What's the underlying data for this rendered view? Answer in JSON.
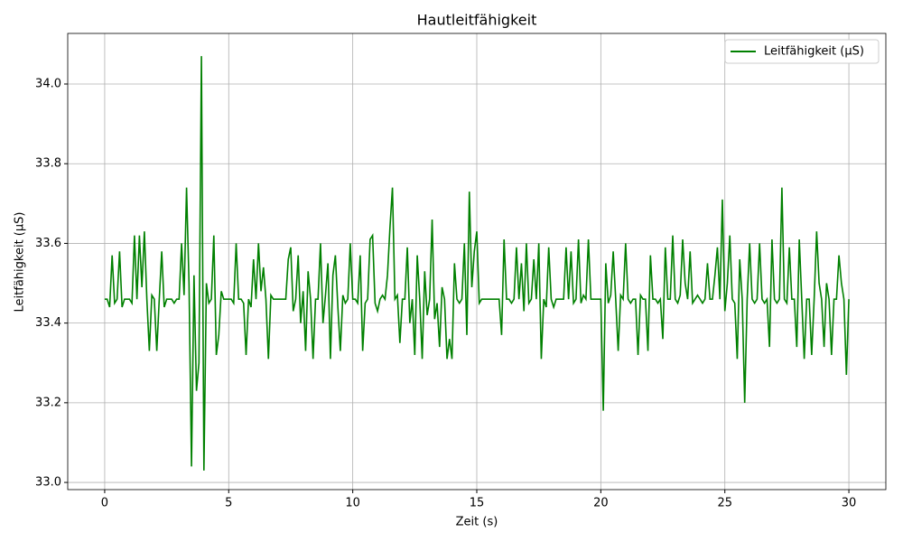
{
  "chart_data": {
    "type": "line",
    "title": "Hautleitfähigkeit",
    "x_label": "Zeit (s)",
    "y_label": "Leitfähigkeit (µS)",
    "xlim": [
      -1.49,
      31.49
    ],
    "ylim": [
      32.982,
      34.127
    ],
    "xticks": [
      0,
      5,
      10,
      15,
      20,
      25,
      30
    ],
    "yticks": [
      {
        "value": 33,
        "label": "33.0"
      },
      33.2,
      33.4,
      33.6,
      33.8,
      {
        "value": 34,
        "label": "34.0"
      }
    ],
    "grid": true,
    "legend": "upper right",
    "x": [
      0,
      0.1,
      0.2,
      0.3,
      0.4,
      0.5,
      0.6,
      0.7,
      0.8,
      0.9,
      1,
      1.1,
      1.2,
      1.3,
      1.4,
      1.5,
      1.6,
      1.7,
      1.8,
      1.9,
      2,
      2.1,
      2.2,
      2.3,
      2.4,
      2.5,
      2.6,
      2.7,
      2.8,
      2.9,
      3,
      3.1,
      3.2,
      3.3,
      3.4,
      3.5,
      3.6,
      3.7,
      3.8,
      3.9,
      4,
      4.1,
      4.2,
      4.3,
      4.4,
      4.5,
      4.6,
      4.7,
      4.8,
      4.9,
      5,
      5.1,
      5.2,
      5.3,
      5.4,
      5.5,
      5.6,
      5.7,
      5.8,
      5.9,
      6,
      6.1,
      6.2,
      6.3,
      6.4,
      6.5,
      6.6,
      6.7,
      6.8,
      6.9,
      7,
      7.1,
      7.2,
      7.3,
      7.4,
      7.5,
      7.6,
      7.7,
      7.8,
      7.9,
      8,
      8.1,
      8.2,
      8.3,
      8.4,
      8.5,
      8.6,
      8.7,
      8.8,
      8.9,
      9,
      9.1,
      9.2,
      9.3,
      9.4,
      9.5,
      9.6,
      9.7,
      9.8,
      9.9,
      10,
      10.1,
      10.2,
      10.3,
      10.4,
      10.5,
      10.6,
      10.7,
      10.8,
      10.9,
      11,
      11.1,
      11.2,
      11.3,
      11.4,
      11.5,
      11.6,
      11.7,
      11.8,
      11.9,
      12,
      12.1,
      12.2,
      12.3,
      12.4,
      12.5,
      12.6,
      12.7,
      12.8,
      12.9,
      13,
      13.1,
      13.2,
      13.3,
      13.4,
      13.5,
      13.6,
      13.7,
      13.8,
      13.9,
      14,
      14.1,
      14.2,
      14.3,
      14.4,
      14.5,
      14.6,
      14.7,
      14.8,
      14.9,
      15,
      15.1,
      15.2,
      15.3,
      15.4,
      15.5,
      15.6,
      15.7,
      15.8,
      15.9,
      16,
      16.1,
      16.2,
      16.3,
      16.4,
      16.5,
      16.6,
      16.7,
      16.8,
      16.9,
      17,
      17.1,
      17.2,
      17.3,
      17.4,
      17.5,
      17.6,
      17.7,
      17.8,
      17.9,
      18,
      18.1,
      18.2,
      18.3,
      18.4,
      18.5,
      18.6,
      18.7,
      18.8,
      18.9,
      19,
      19.1,
      19.2,
      19.3,
      19.4,
      19.5,
      19.6,
      19.7,
      19.8,
      19.9,
      20,
      20.1,
      20.2,
      20.3,
      20.4,
      20.5,
      20.6,
      20.7,
      20.8,
      20.9,
      21,
      21.1,
      21.2,
      21.3,
      21.4,
      21.5,
      21.6,
      21.7,
      21.8,
      21.9,
      22,
      22.1,
      22.2,
      22.3,
      22.4,
      22.5,
      22.6,
      22.7,
      22.8,
      22.9,
      23,
      23.1,
      23.2,
      23.3,
      23.4,
      23.5,
      23.6,
      23.7,
      23.8,
      23.9,
      24,
      24.1,
      24.2,
      24.3,
      24.4,
      24.5,
      24.6,
      24.7,
      24.8,
      24.9,
      25,
      25.1,
      25.2,
      25.3,
      25.4,
      25.5,
      25.6,
      25.7,
      25.8,
      25.9,
      26,
      26.1,
      26.2,
      26.3,
      26.4,
      26.5,
      26.6,
      26.7,
      26.8,
      26.9,
      27,
      27.1,
      27.2,
      27.3,
      27.4,
      27.5,
      27.6,
      27.7,
      27.8,
      27.9,
      28,
      28.1,
      28.2,
      28.3,
      28.4,
      28.5,
      28.6,
      28.7,
      28.8,
      28.9,
      29,
      29.1,
      29.2,
      29.3,
      29.4,
      29.5,
      29.6,
      29.7,
      29.8,
      29.9,
      30
    ],
    "series": [
      {
        "name": "Leitfähigkeit (µS)",
        "color": "#008000",
        "values": [
          33.46,
          33.46,
          33.44,
          33.57,
          33.45,
          33.46,
          33.58,
          33.44,
          33.46,
          33.46,
          33.46,
          33.45,
          33.62,
          33.46,
          33.62,
          33.49,
          33.63,
          33.46,
          33.33,
          33.47,
          33.46,
          33.33,
          33.46,
          33.58,
          33.44,
          33.46,
          33.46,
          33.46,
          33.45,
          33.46,
          33.46,
          33.6,
          33.47,
          33.74,
          33.5,
          33.04,
          33.52,
          33.23,
          33.3,
          34.07,
          33.03,
          33.5,
          33.45,
          33.46,
          33.62,
          33.32,
          33.37,
          33.48,
          33.46,
          33.46,
          33.46,
          33.46,
          33.45,
          33.6,
          33.46,
          33.46,
          33.45,
          33.32,
          33.46,
          33.44,
          33.56,
          33.46,
          33.6,
          33.48,
          33.54,
          33.46,
          33.31,
          33.47,
          33.46,
          33.46,
          33.46,
          33.46,
          33.46,
          33.46,
          33.56,
          33.59,
          33.43,
          33.46,
          33.57,
          33.4,
          33.48,
          33.33,
          33.53,
          33.46,
          33.31,
          33.46,
          33.46,
          33.6,
          33.4,
          33.47,
          33.55,
          33.31,
          33.52,
          33.57,
          33.44,
          33.33,
          33.47,
          33.45,
          33.46,
          33.6,
          33.46,
          33.46,
          33.45,
          33.57,
          33.33,
          33.45,
          33.46,
          33.61,
          33.62,
          33.45,
          33.43,
          33.46,
          33.47,
          33.46,
          33.52,
          33.64,
          33.74,
          33.46,
          33.47,
          33.35,
          33.46,
          33.46,
          33.59,
          33.4,
          33.46,
          33.32,
          33.57,
          33.46,
          33.31,
          33.53,
          33.42,
          33.46,
          33.66,
          33.41,
          33.45,
          33.34,
          33.49,
          33.46,
          33.31,
          33.36,
          33.31,
          33.55,
          33.46,
          33.45,
          33.46,
          33.6,
          33.37,
          33.73,
          33.49,
          33.58,
          33.63,
          33.45,
          33.46,
          33.46,
          33.46,
          33.46,
          33.46,
          33.46,
          33.46,
          33.46,
          33.37,
          33.61,
          33.46,
          33.46,
          33.45,
          33.46,
          33.59,
          33.46,
          33.55,
          33.43,
          33.6,
          33.45,
          33.46,
          33.56,
          33.46,
          33.6,
          33.31,
          33.46,
          33.44,
          33.59,
          33.46,
          33.44,
          33.46,
          33.46,
          33.46,
          33.46,
          33.59,
          33.46,
          33.58,
          33.45,
          33.46,
          33.61,
          33.45,
          33.47,
          33.46,
          33.61,
          33.46,
          33.46,
          33.46,
          33.46,
          33.46,
          33.18,
          33.55,
          33.45,
          33.47,
          33.58,
          33.46,
          33.33,
          33.47,
          33.46,
          33.6,
          33.46,
          33.45,
          33.46,
          33.46,
          33.32,
          33.47,
          33.46,
          33.46,
          33.33,
          33.57,
          33.46,
          33.46,
          33.45,
          33.46,
          33.36,
          33.59,
          33.46,
          33.46,
          33.62,
          33.46,
          33.45,
          33.47,
          33.61,
          33.5,
          33.46,
          33.58,
          33.45,
          33.46,
          33.47,
          33.46,
          33.45,
          33.46,
          33.55,
          33.46,
          33.46,
          33.52,
          33.59,
          33.46,
          33.71,
          33.43,
          33.5,
          33.62,
          33.46,
          33.45,
          33.31,
          33.56,
          33.46,
          33.2,
          33.46,
          33.6,
          33.46,
          33.45,
          33.46,
          33.6,
          33.46,
          33.45,
          33.46,
          33.34,
          33.61,
          33.46,
          33.45,
          33.46,
          33.74,
          33.46,
          33.45,
          33.59,
          33.46,
          33.46,
          33.34,
          33.61,
          33.46,
          33.31,
          33.46,
          33.46,
          33.32,
          33.46,
          33.63,
          33.5,
          33.46,
          33.34,
          33.5,
          33.46,
          33.32,
          33.46,
          33.46,
          33.57,
          33.5,
          33.46,
          33.27,
          33.46
        ]
      }
    ]
  }
}
